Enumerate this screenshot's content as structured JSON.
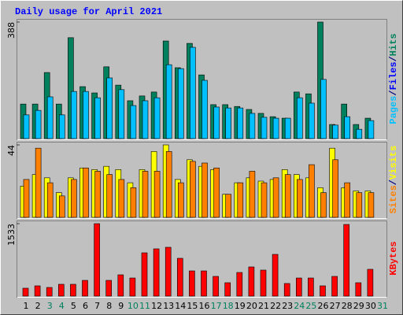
{
  "title": "Daily usage for April 2021",
  "categories": [
    "1",
    "2",
    "3",
    "4",
    "5",
    "6",
    "7",
    "8",
    "9",
    "10",
    "11",
    "12",
    "13",
    "14",
    "15",
    "16",
    "17",
    "18",
    "19",
    "20",
    "21",
    "22",
    "23",
    "24",
    "25",
    "26",
    "27",
    "28",
    "29",
    "30",
    "31"
  ],
  "category_colors": [
    "#000000",
    "#000000",
    "#00805c",
    "#00805c",
    "#000000",
    "#000000",
    "#000000",
    "#000000",
    "#000000",
    "#00805c",
    "#00805c",
    "#000000",
    "#000000",
    "#000000",
    "#000000",
    "#000000",
    "#00805c",
    "#00805c",
    "#000000",
    "#000000",
    "#000000",
    "#000000",
    "#000000",
    "#00805c",
    "#00805c",
    "#000000",
    "#000000",
    "#000000",
    "#000000",
    "#000000",
    "#00805c"
  ],
  "separator": "/",
  "chart_data": [
    {
      "type": "bar",
      "ylim": [
        0,
        388
      ],
      "yticks": [
        388
      ],
      "axis_label": [
        {
          "text": "Pages",
          "color": "#00c0ff"
        },
        {
          "text": "Files",
          "color": "#0000ff"
        },
        {
          "text": "Hits",
          "color": "#00805c"
        }
      ],
      "series": [
        {
          "color": "#00805c",
          "values": [
            115,
            115,
            220,
            115,
            336,
            173,
            152,
            239,
            178,
            126,
            142,
            155,
            325,
            236,
            317,
            212,
            113,
            113,
            107,
            97,
            84,
            73,
            68,
            155,
            149,
            388,
            47,
            115,
            47,
            68,
            null
          ]
        },
        {
          "color": "#00c0ff",
          "values": [
            79,
            94,
            139,
            79,
            157,
            157,
            136,
            202,
            163,
            110,
            126,
            136,
            246,
            233,
            304,
            194,
            105,
            102,
            102,
            84,
            71,
            68,
            68,
            136,
            118,
            197,
            45,
            73,
            31,
            60,
            null
          ]
        }
      ]
    },
    {
      "type": "bar",
      "ylim": [
        0,
        44
      ],
      "yticks": [
        44
      ],
      "axis_label": [
        {
          "text": "Sites",
          "color": "#ff8000"
        },
        {
          "text": "Visits",
          "color": "#ffff00"
        }
      ],
      "series": [
        {
          "color": "#ffff00",
          "values": [
            19,
            26,
            24,
            15,
            24,
            30,
            29,
            31,
            29,
            21,
            29,
            40,
            44,
            23,
            35,
            31,
            29,
            14,
            21,
            24,
            22,
            23,
            29,
            26,
            24,
            18,
            42,
            18,
            16,
            16,
            null
          ]
        },
        {
          "color": "#ff8000",
          "values": [
            23,
            42,
            21,
            13,
            23,
            30,
            28,
            26,
            23,
            18,
            28,
            28,
            40,
            21,
            34,
            33,
            30,
            14,
            21,
            28,
            21,
            24,
            26,
            23,
            32,
            15,
            35,
            21,
            15,
            15,
            null
          ]
        }
      ]
    },
    {
      "type": "bar",
      "ylim": [
        0,
        1533
      ],
      "yticks": [
        1533
      ],
      "axis_label": [
        {
          "text": "KBytes",
          "color": "#ff0000"
        }
      ],
      "series": [
        {
          "color": "#ff0000",
          "values": [
            167,
            217,
            183,
            250,
            250,
            333,
            1533,
            333,
            450,
            383,
            916,
            1000,
            1033,
            800,
            533,
            533,
            417,
            283,
            500,
            617,
            550,
            883,
            267,
            383,
            383,
            217,
            417,
            1516,
            283,
            567,
            null
          ]
        }
      ]
    }
  ]
}
